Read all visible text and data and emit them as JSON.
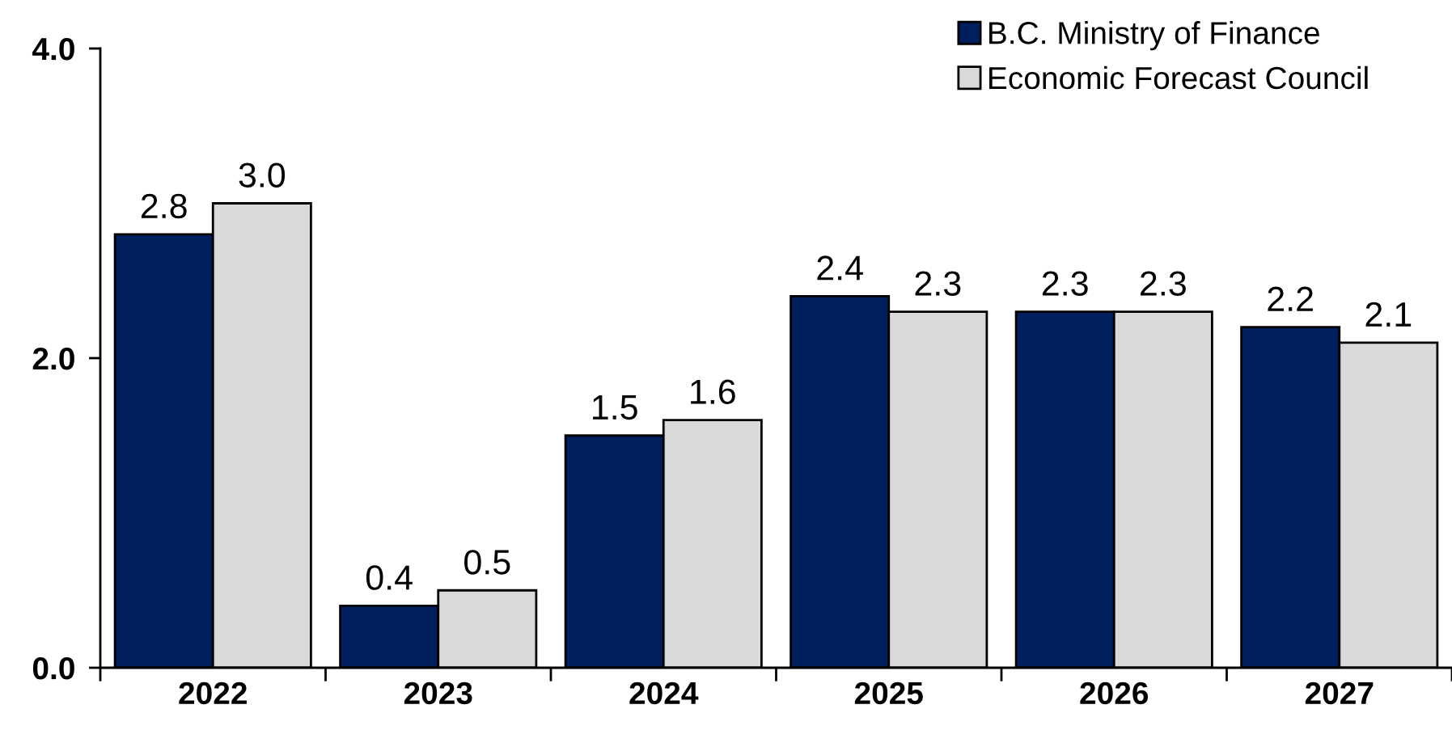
{
  "chart_data": {
    "type": "bar",
    "categories": [
      "2022",
      "2023",
      "2024",
      "2025",
      "2026",
      "2027"
    ],
    "series": [
      {
        "name": "B.C. Ministry of Finance",
        "color": "#001f5f",
        "values": [
          2.8,
          0.4,
          1.5,
          2.4,
          2.3,
          2.2
        ],
        "value_labels": [
          "2.8",
          "0.4",
          "1.5",
          "2.4",
          "2.3",
          "2.2"
        ]
      },
      {
        "name": "Economic Forecast Council",
        "color": "#d9d9d9",
        "values": [
          3.0,
          0.5,
          1.6,
          2.3,
          2.3,
          2.1
        ],
        "value_labels": [
          "3.0",
          "0.5",
          "1.6",
          "2.3",
          "2.3",
          "2.1"
        ]
      }
    ],
    "ylim": [
      0,
      4
    ],
    "yticks": [
      {
        "value": 0,
        "label": "0.0"
      },
      {
        "value": 2,
        "label": "2.0"
      },
      {
        "value": 4,
        "label": "4.0"
      }
    ],
    "grid": false,
    "legend": "top right"
  }
}
